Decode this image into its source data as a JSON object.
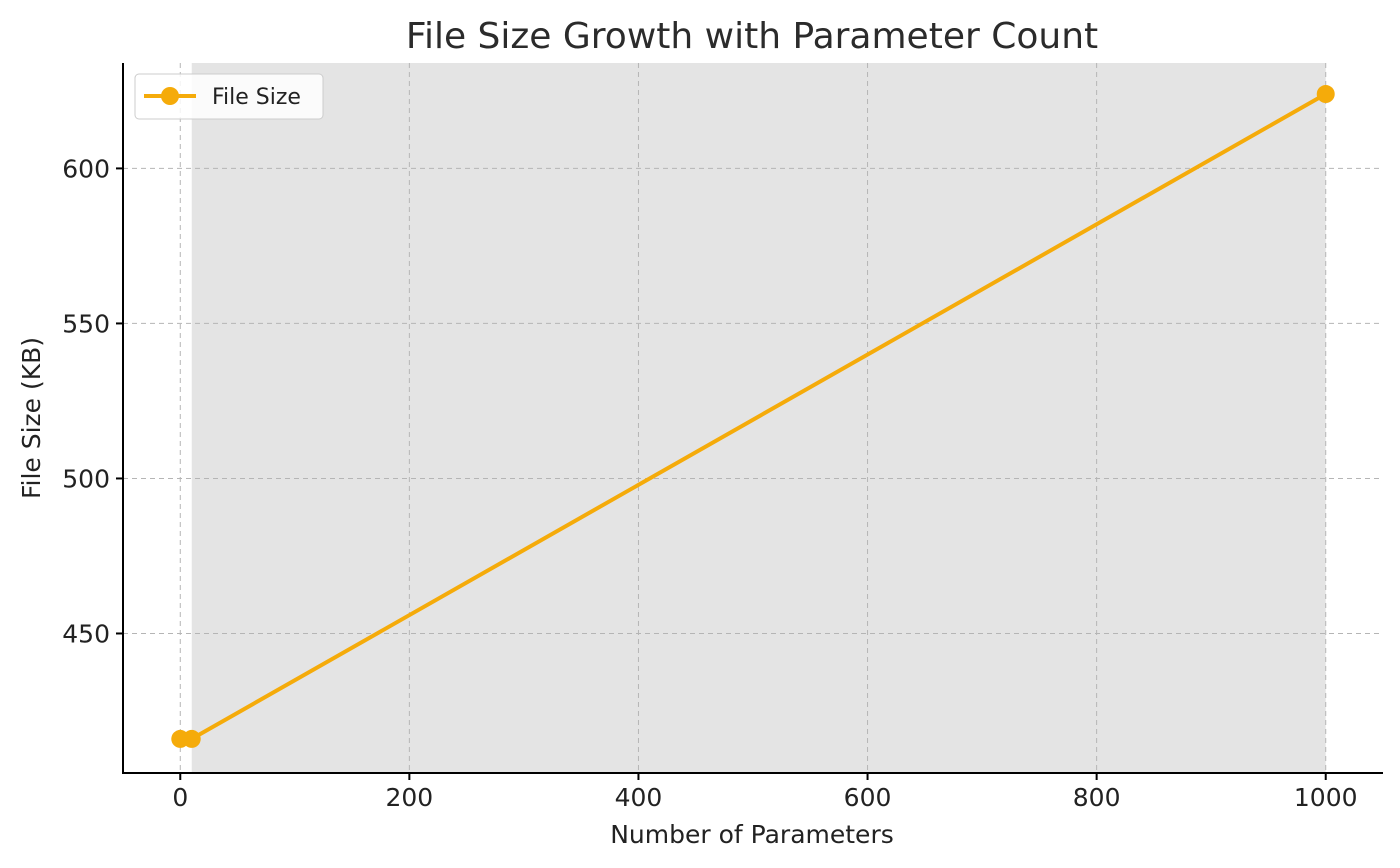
{
  "chart_data": {
    "type": "line",
    "title": "File Size Growth with Parameter Count",
    "xlabel": "Number of Parameters",
    "ylabel": "File Size (KB)",
    "xlim": [
      -50,
      1050
    ],
    "ylim": [
      405,
      634
    ],
    "xticks": [
      0,
      200,
      400,
      600,
      800,
      1000
    ],
    "yticks": [
      450,
      500,
      550,
      600
    ],
    "grid": true,
    "legend_position": "top-left",
    "shaded_region": {
      "x": [
        10,
        1000
      ],
      "color": "#e4e4e4"
    },
    "series": [
      {
        "name": "File Size",
        "color": "#f5ab0a",
        "x": [
          0,
          10,
          1000
        ],
        "y": [
          416,
          416,
          624
        ]
      }
    ]
  }
}
